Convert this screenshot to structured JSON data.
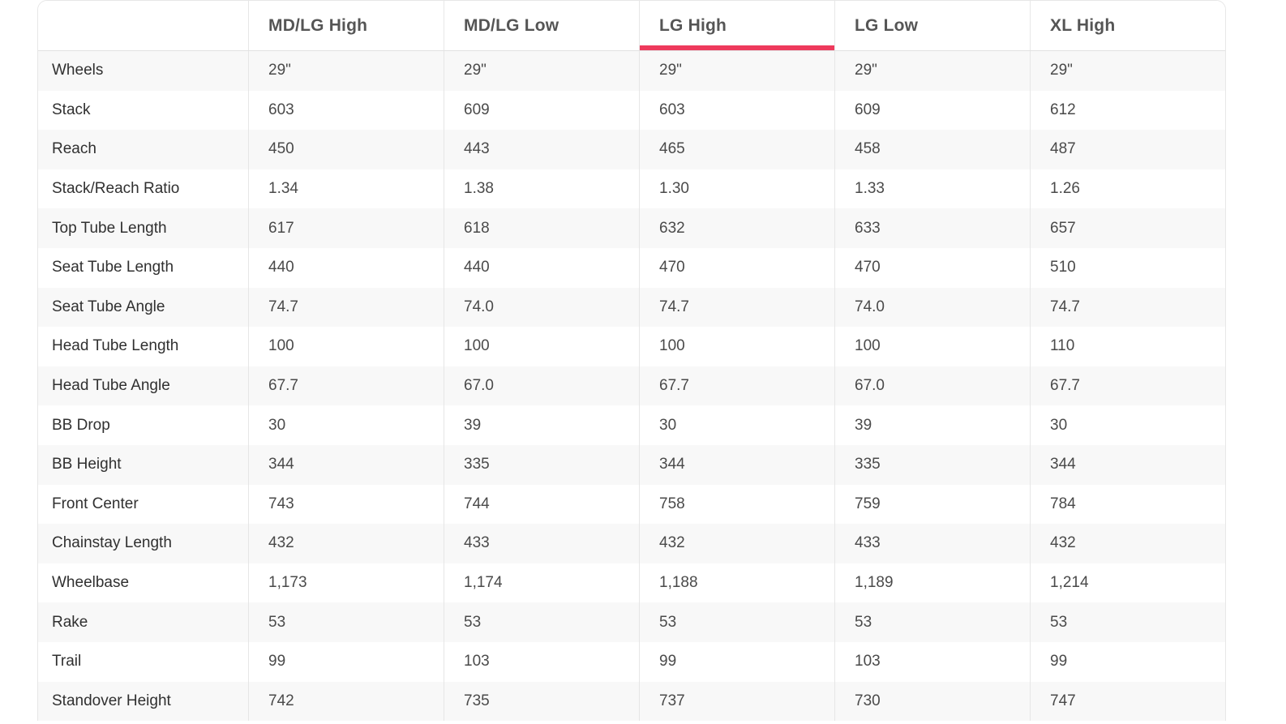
{
  "table": {
    "columns": [
      {
        "label": "MD/LG High",
        "active": false
      },
      {
        "label": "MD/LG Low",
        "active": false
      },
      {
        "label": "LG High",
        "active": true
      },
      {
        "label": "LG Low",
        "active": false
      },
      {
        "label": "XL High",
        "active": false
      }
    ],
    "rows": [
      {
        "label": "Wheels",
        "values": [
          "29\"",
          "29\"",
          "29\"",
          "29\"",
          "29\""
        ]
      },
      {
        "label": "Stack",
        "values": [
          "603",
          "609",
          "603",
          "609",
          "612"
        ]
      },
      {
        "label": "Reach",
        "values": [
          "450",
          "443",
          "465",
          "458",
          "487"
        ]
      },
      {
        "label": "Stack/Reach Ratio",
        "values": [
          "1.34",
          "1.38",
          "1.30",
          "1.33",
          "1.26"
        ]
      },
      {
        "label": "Top Tube Length",
        "values": [
          "617",
          "618",
          "632",
          "633",
          "657"
        ]
      },
      {
        "label": "Seat Tube Length",
        "values": [
          "440",
          "440",
          "470",
          "470",
          "510"
        ]
      },
      {
        "label": "Seat Tube Angle",
        "values": [
          "74.7",
          "74.0",
          "74.7",
          "74.0",
          "74.7"
        ]
      },
      {
        "label": "Head Tube Length",
        "values": [
          "100",
          "100",
          "100",
          "100",
          "110"
        ]
      },
      {
        "label": "Head Tube Angle",
        "values": [
          "67.7",
          "67.0",
          "67.7",
          "67.0",
          "67.7"
        ]
      },
      {
        "label": "BB Drop",
        "values": [
          "30",
          "39",
          "30",
          "39",
          "30"
        ]
      },
      {
        "label": "BB Height",
        "values": [
          "344",
          "335",
          "344",
          "335",
          "344"
        ]
      },
      {
        "label": "Front Center",
        "values": [
          "743",
          "744",
          "758",
          "759",
          "784"
        ]
      },
      {
        "label": "Chainstay Length",
        "values": [
          "432",
          "433",
          "432",
          "433",
          "432"
        ]
      },
      {
        "label": "Wheelbase",
        "values": [
          "1,173",
          "1,174",
          "1,188",
          "1,189",
          "1,214"
        ]
      },
      {
        "label": "Rake",
        "values": [
          "53",
          "53",
          "53",
          "53",
          "53"
        ]
      },
      {
        "label": "Trail",
        "values": [
          "99",
          "103",
          "99",
          "103",
          "99"
        ]
      },
      {
        "label": "Standover Height",
        "values": [
          "742",
          "735",
          "737",
          "730",
          "747"
        ]
      }
    ],
    "colors": {
      "accent": "#ee3a5c",
      "stripe": "#f8f8f8",
      "border": "#e6e6e6",
      "header_text": "#555555",
      "label_text": "#303030",
      "value_text": "#4a4a4a"
    }
  }
}
